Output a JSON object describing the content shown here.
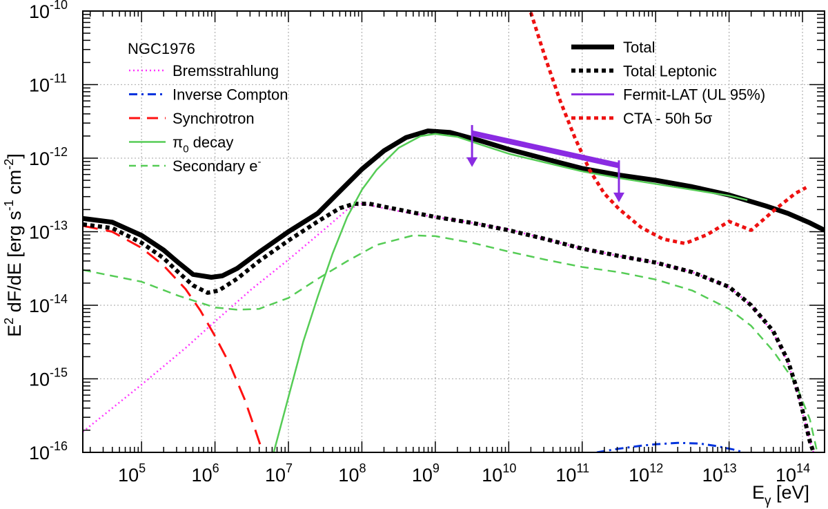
{
  "chart_data": {
    "type": "line",
    "source_label": "NGC1976",
    "xlabel": {
      "main": "E",
      "sub": "γ",
      "unit": " [eV]"
    },
    "ylabel": {
      "p1": "E",
      "sup1": "2",
      "p2": " dF/dE [erg s",
      "sup2": "-1",
      "p3": " cm",
      "sup3": "-2",
      "p4": "]"
    },
    "xscale": "log",
    "yscale": "log",
    "xlim_log10": [
      4.2,
      14.3
    ],
    "ylim_log10": [
      -16,
      -10
    ],
    "x_tick_labels": [
      {
        "base": "10",
        "exp": "5",
        "value_log10": 5
      },
      {
        "base": "10",
        "exp": "6",
        "value_log10": 6
      },
      {
        "base": "10",
        "exp": "7",
        "value_log10": 7
      },
      {
        "base": "10",
        "exp": "8",
        "value_log10": 8
      },
      {
        "base": "10",
        "exp": "9",
        "value_log10": 9
      },
      {
        "base": "10",
        "exp": "10",
        "value_log10": 10
      },
      {
        "base": "10",
        "exp": "11",
        "value_log10": 11
      },
      {
        "base": "10",
        "exp": "12",
        "value_log10": 12
      },
      {
        "base": "10",
        "exp": "13",
        "value_log10": 13
      },
      {
        "base": "10",
        "exp": "14",
        "value_log10": 14
      }
    ],
    "y_tick_labels": [
      {
        "base": "10",
        "exp": "-10",
        "value_log10": -10
      },
      {
        "base": "10",
        "exp": "-11",
        "value_log10": -11
      },
      {
        "base": "10",
        "exp": "-12",
        "value_log10": -12
      },
      {
        "base": "10",
        "exp": "-13",
        "value_log10": -13
      },
      {
        "base": "10",
        "exp": "-14",
        "value_log10": -14
      },
      {
        "base": "10",
        "exp": "-15",
        "value_log10": -15
      },
      {
        "base": "10",
        "exp": "-16",
        "value_log10": -16
      }
    ],
    "grid": true,
    "legend_left": {
      "placement": "top-left",
      "entries": [
        {
          "key": "brems",
          "label": "Bremsstrahlung"
        },
        {
          "key": "ic",
          "label": "Inverse Compton"
        },
        {
          "key": "sync",
          "label": "Synchrotron"
        },
        {
          "key": "pi0",
          "label": "π",
          "sub": "0",
          "tail": " decay"
        },
        {
          "key": "sec",
          "label": "Secondary e",
          "sup": "-"
        }
      ]
    },
    "legend_right": {
      "placement": "top-right",
      "entries": [
        {
          "key": "total",
          "label": "Total"
        },
        {
          "key": "lep",
          "label": "Total Leptonic"
        },
        {
          "key": "fermi",
          "label": "Fermit-LAT (UL 95%)"
        },
        {
          "key": "cta",
          "label": "CTA - 50h 5σ"
        }
      ]
    },
    "series": [
      {
        "key": "brems",
        "name": "Bremsstrahlung",
        "color": "#ff33ff",
        "dash": "dotted",
        "width": 2.5,
        "points_log10": [
          [
            4.2,
            -15.72
          ],
          [
            5.0,
            -15.08
          ],
          [
            5.6,
            -14.58
          ],
          [
            6.0,
            -14.22
          ],
          [
            6.5,
            -13.78
          ],
          [
            7.0,
            -13.38
          ],
          [
            7.5,
            -12.96
          ],
          [
            7.8,
            -12.7
          ],
          [
            8.0,
            -12.62
          ],
          [
            8.5,
            -12.72
          ],
          [
            9.0,
            -12.8
          ],
          [
            9.5,
            -12.88
          ],
          [
            10.0,
            -12.97
          ],
          [
            10.5,
            -13.1
          ],
          [
            11.0,
            -13.23
          ],
          [
            11.5,
            -13.33
          ],
          [
            12.0,
            -13.42
          ],
          [
            12.5,
            -13.55
          ],
          [
            13.0,
            -13.75
          ],
          [
            13.3,
            -14.0
          ],
          [
            13.6,
            -14.37
          ],
          [
            13.8,
            -14.78
          ],
          [
            13.95,
            -15.25
          ],
          [
            14.1,
            -15.85
          ],
          [
            14.15,
            -16.0
          ]
        ]
      },
      {
        "key": "ic",
        "name": "Inverse Compton",
        "color": "#0033dd",
        "dash": "dashdot",
        "width": 3,
        "points_log10": [
          [
            11.2,
            -16.0
          ],
          [
            11.5,
            -15.95
          ],
          [
            11.8,
            -15.91
          ],
          [
            12.0,
            -15.89
          ],
          [
            12.3,
            -15.87
          ],
          [
            12.6,
            -15.88
          ],
          [
            12.8,
            -15.91
          ],
          [
            13.05,
            -15.96
          ],
          [
            13.2,
            -16.0
          ]
        ]
      },
      {
        "key": "sync",
        "name": "Synchrotron",
        "color": "#ff1111",
        "dash": "dashed",
        "width": 3,
        "points_log10": [
          [
            4.2,
            -12.92
          ],
          [
            4.6,
            -13.0
          ],
          [
            5.0,
            -13.22
          ],
          [
            5.3,
            -13.46
          ],
          [
            5.6,
            -13.78
          ],
          [
            5.8,
            -14.07
          ],
          [
            6.0,
            -14.42
          ],
          [
            6.2,
            -14.8
          ],
          [
            6.4,
            -15.27
          ],
          [
            6.55,
            -15.7
          ],
          [
            6.65,
            -16.0
          ]
        ]
      },
      {
        "key": "pi0",
        "name": "π0 decay",
        "color": "#55cc55",
        "dash": "solid",
        "width": 2.5,
        "points_log10": [
          [
            6.8,
            -16.0
          ],
          [
            7.0,
            -15.25
          ],
          [
            7.2,
            -14.5
          ],
          [
            7.4,
            -13.88
          ],
          [
            7.6,
            -13.3
          ],
          [
            7.8,
            -12.8
          ],
          [
            8.0,
            -12.43
          ],
          [
            8.2,
            -12.16
          ],
          [
            8.5,
            -11.86
          ],
          [
            8.8,
            -11.7
          ],
          [
            9.0,
            -11.67
          ],
          [
            9.3,
            -11.71
          ],
          [
            9.6,
            -11.81
          ],
          [
            10.0,
            -11.94
          ],
          [
            10.5,
            -12.06
          ],
          [
            11.0,
            -12.18
          ],
          [
            11.5,
            -12.27
          ],
          [
            12.0,
            -12.35
          ],
          [
            12.5,
            -12.43
          ],
          [
            13.0,
            -12.51
          ],
          [
            13.25,
            -12.57
          ]
        ]
      },
      {
        "key": "sec",
        "name": "Secondary e-",
        "color": "#55cc55",
        "dash": "dashed2",
        "width": 2.5,
        "points_log10": [
          [
            4.2,
            -13.52
          ],
          [
            5.0,
            -13.68
          ],
          [
            5.5,
            -13.87
          ],
          [
            6.0,
            -14.03
          ],
          [
            6.3,
            -14.06
          ],
          [
            6.6,
            -14.05
          ],
          [
            7.0,
            -13.9
          ],
          [
            7.4,
            -13.64
          ],
          [
            7.8,
            -13.4
          ],
          [
            8.2,
            -13.18
          ],
          [
            8.7,
            -13.05
          ],
          [
            9.0,
            -13.06
          ],
          [
            9.5,
            -13.15
          ],
          [
            10.0,
            -13.27
          ],
          [
            10.5,
            -13.38
          ],
          [
            11.0,
            -13.48
          ],
          [
            11.5,
            -13.55
          ],
          [
            12.0,
            -13.65
          ],
          [
            12.5,
            -13.8
          ],
          [
            13.0,
            -14.05
          ],
          [
            13.3,
            -14.28
          ],
          [
            13.6,
            -14.62
          ],
          [
            13.9,
            -15.05
          ],
          [
            14.1,
            -15.55
          ],
          [
            14.2,
            -16.0
          ]
        ]
      },
      {
        "key": "lep",
        "name": "Total Leptonic",
        "color": "#000000",
        "dash": "dotted-thick",
        "width": 6,
        "points_log10": [
          [
            4.2,
            -12.9
          ],
          [
            4.6,
            -12.95
          ],
          [
            5.0,
            -13.15
          ],
          [
            5.3,
            -13.36
          ],
          [
            5.5,
            -13.55
          ],
          [
            5.7,
            -13.73
          ],
          [
            5.9,
            -13.83
          ],
          [
            6.05,
            -13.8
          ],
          [
            6.3,
            -13.64
          ],
          [
            6.6,
            -13.4
          ],
          [
            7.0,
            -13.12
          ],
          [
            7.4,
            -12.86
          ],
          [
            7.7,
            -12.68
          ],
          [
            7.9,
            -12.62
          ],
          [
            8.1,
            -12.62
          ],
          [
            8.5,
            -12.7
          ],
          [
            9.0,
            -12.8
          ],
          [
            9.5,
            -12.88
          ],
          [
            10.0,
            -12.98
          ],
          [
            10.5,
            -13.1
          ],
          [
            11.0,
            -13.23
          ],
          [
            11.5,
            -13.33
          ],
          [
            12.0,
            -13.42
          ],
          [
            12.5,
            -13.55
          ],
          [
            13.0,
            -13.75
          ],
          [
            13.3,
            -14.0
          ],
          [
            13.6,
            -14.35
          ],
          [
            13.8,
            -14.75
          ],
          [
            13.95,
            -15.22
          ],
          [
            14.1,
            -15.85
          ],
          [
            14.15,
            -16.0
          ]
        ]
      },
      {
        "key": "total",
        "name": "Total",
        "color": "#000000",
        "dash": "solid",
        "width": 7,
        "points_log10": [
          [
            4.2,
            -12.82
          ],
          [
            4.6,
            -12.87
          ],
          [
            5.0,
            -13.05
          ],
          [
            5.3,
            -13.25
          ],
          [
            5.5,
            -13.42
          ],
          [
            5.7,
            -13.58
          ],
          [
            5.95,
            -13.62
          ],
          [
            6.1,
            -13.6
          ],
          [
            6.3,
            -13.5
          ],
          [
            6.6,
            -13.28
          ],
          [
            7.0,
            -13.0
          ],
          [
            7.4,
            -12.75
          ],
          [
            7.7,
            -12.45
          ],
          [
            8.0,
            -12.15
          ],
          [
            8.3,
            -11.9
          ],
          [
            8.6,
            -11.72
          ],
          [
            8.9,
            -11.63
          ],
          [
            9.2,
            -11.65
          ],
          [
            9.6,
            -11.76
          ],
          [
            10.0,
            -11.88
          ],
          [
            10.5,
            -12.01
          ],
          [
            11.0,
            -12.14
          ],
          [
            11.5,
            -12.23
          ],
          [
            12.0,
            -12.3
          ],
          [
            12.5,
            -12.39
          ],
          [
            13.0,
            -12.5
          ],
          [
            13.5,
            -12.65
          ],
          [
            13.8,
            -12.75
          ],
          [
            14.1,
            -12.88
          ],
          [
            14.3,
            -12.98
          ]
        ]
      },
      {
        "key": "cta",
        "name": "CTA - 50h 5σ",
        "color": "#ee1111",
        "dash": "dotted-thick",
        "width": 5,
        "points_log10": [
          [
            10.3,
            -10.02
          ],
          [
            10.5,
            -10.64
          ],
          [
            10.7,
            -11.22
          ],
          [
            10.9,
            -11.72
          ],
          [
            11.1,
            -12.16
          ],
          [
            11.3,
            -12.48
          ],
          [
            11.5,
            -12.69
          ],
          [
            11.8,
            -12.94
          ],
          [
            12.1,
            -13.1
          ],
          [
            12.4,
            -13.16
          ],
          [
            12.7,
            -13.04
          ],
          [
            13.0,
            -12.86
          ],
          [
            13.3,
            -12.98
          ],
          [
            13.6,
            -12.72
          ],
          [
            13.9,
            -12.48
          ],
          [
            14.05,
            -12.4
          ]
        ]
      }
    ],
    "fermi_ul": {
      "name": "Fermit-LAT (UL 95%)",
      "color": "#8a2be2",
      "band": [
        [
          9.5,
          -11.66
        ],
        [
          11.5,
          -12.1
        ]
      ],
      "arrows": [
        {
          "x": 9.5,
          "y_top": -11.55,
          "y_bottom": -12.12
        },
        {
          "x": 11.5,
          "y_top": -12.03,
          "y_bottom": -12.6
        }
      ]
    }
  }
}
